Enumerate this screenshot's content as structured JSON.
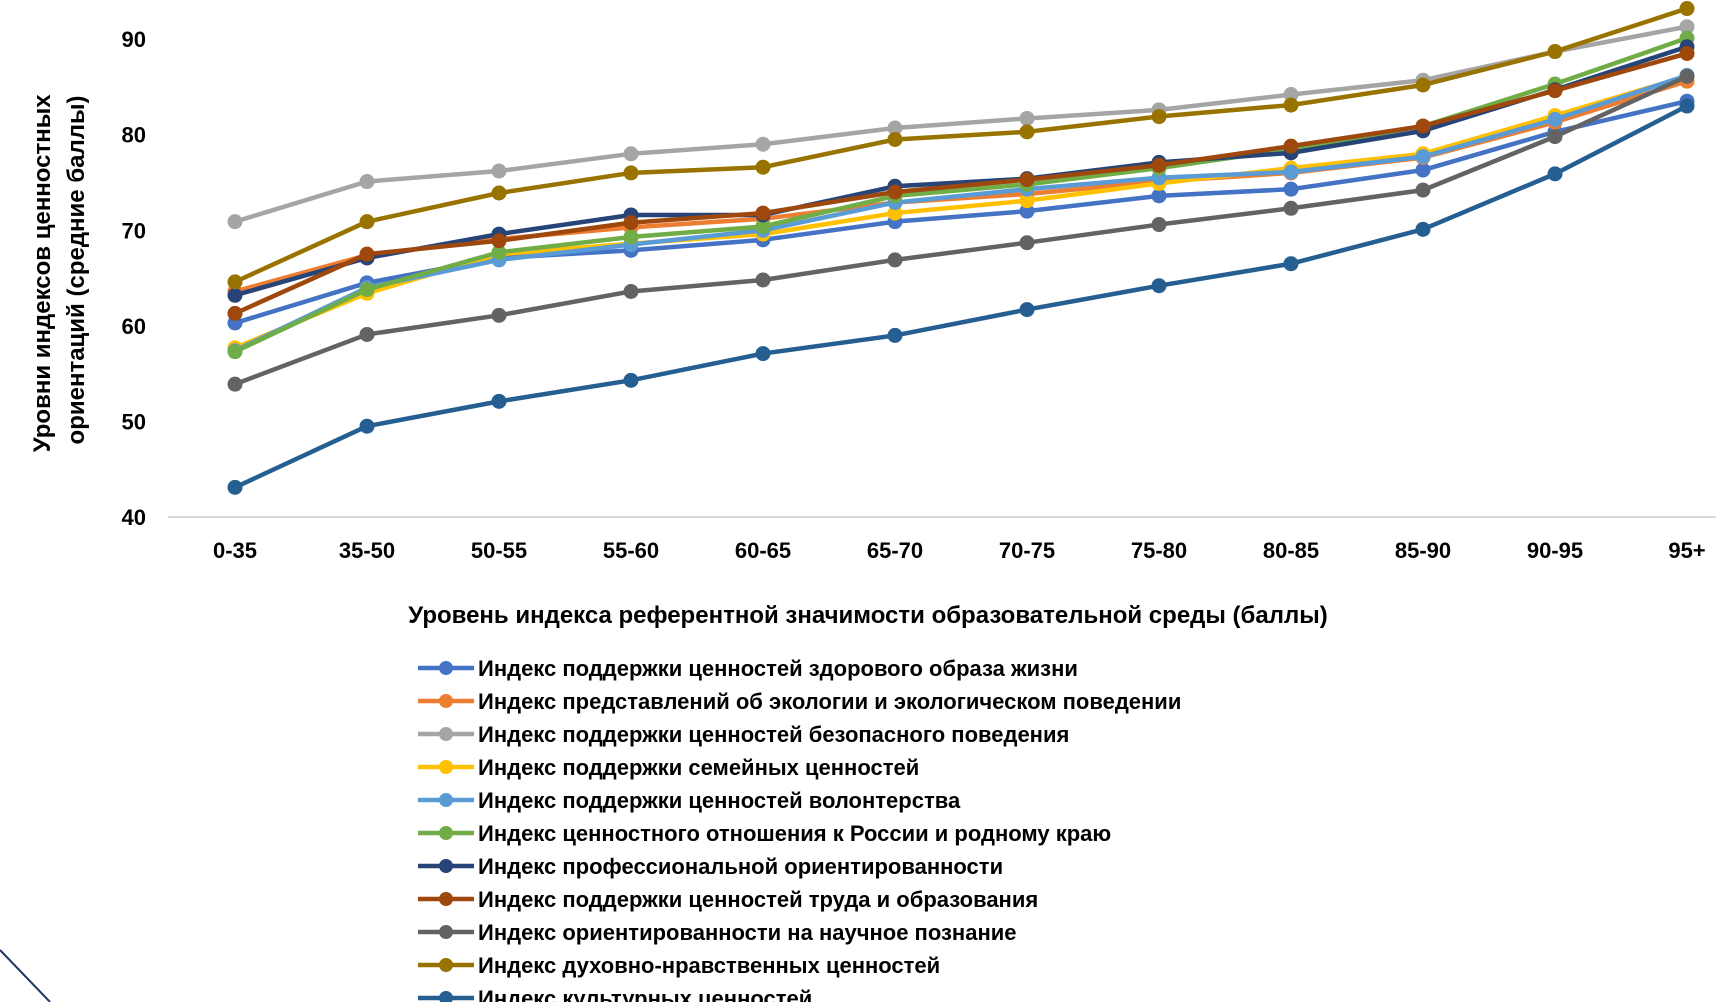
{
  "chart_data": {
    "type": "line",
    "xlabel": "Уровень индекса референтной значимости образовательной среды (баллы)",
    "ylabel_lines": [
      "Уровни индексов ценностных",
      "ориентаций (средние баллы)"
    ],
    "categories": [
      "0-35",
      "35-50",
      "50-55",
      "55-60",
      "60-65",
      "65-70",
      "70-75",
      "75-80",
      "80-85",
      "85-90",
      "90-95",
      "95+"
    ],
    "ylim": [
      40,
      92
    ],
    "yticks": [
      40,
      50,
      60,
      70,
      80,
      90
    ],
    "grid": false,
    "legend_position": "bottom",
    "series": [
      {
        "name": "Индекс поддержки ценностей здорового образа жизни",
        "color": "#4472C4",
        "values": [
          60.3,
          64.5,
          67.1,
          67.9,
          69.0,
          70.9,
          72.0,
          73.6,
          74.3,
          76.3,
          80.3,
          83.5
        ]
      },
      {
        "name": "Индекс представлений об экологии и экологическом поведении",
        "color": "#ED7D31",
        "values": [
          63.6,
          67.4,
          69.1,
          70.3,
          71.2,
          72.9,
          73.8,
          75.1,
          76.0,
          77.6,
          81.3,
          85.6
        ]
      },
      {
        "name": "Индекс поддержки ценностей безопасного поведения",
        "color": "#A5A5A5",
        "values": [
          70.9,
          75.1,
          76.2,
          78.0,
          79.0,
          80.7,
          81.7,
          82.6,
          84.2,
          85.7,
          88.7,
          91.3
        ]
      },
      {
        "name": "Индекс поддержки семейных ценностей",
        "color": "#FFC000",
        "values": [
          57.7,
          63.4,
          67.5,
          68.6,
          69.6,
          71.8,
          73.1,
          74.9,
          76.5,
          78.0,
          82.0,
          86.1
        ]
      },
      {
        "name": "Индекс поддержки ценностей волонтерства",
        "color": "#5B9BD5",
        "values": [
          57.4,
          64.0,
          66.9,
          68.5,
          70.0,
          72.9,
          74.3,
          75.5,
          76.1,
          77.7,
          81.6,
          86.2
        ]
      },
      {
        "name": "Индекс ценностного отношения к России и родному краю",
        "color": "#70AD47",
        "values": [
          57.3,
          63.8,
          67.7,
          69.3,
          70.4,
          73.6,
          74.8,
          76.5,
          78.5,
          80.9,
          85.3,
          90.1
        ]
      },
      {
        "name": "Индекс профессиональной ориентированности",
        "color": "#264478",
        "values": [
          63.2,
          67.1,
          69.6,
          71.6,
          71.6,
          74.6,
          75.4,
          77.1,
          78.1,
          80.4,
          84.7,
          89.2
        ]
      },
      {
        "name": "Индекс поддержки ценностей труда и образования",
        "color": "#9E480E",
        "values": [
          61.3,
          67.5,
          68.9,
          70.8,
          71.8,
          74.0,
          75.3,
          76.8,
          78.8,
          80.9,
          84.6,
          88.5
        ]
      },
      {
        "name": "Индекс ориентированности на научное познание",
        "color": "#636363",
        "values": [
          53.9,
          59.1,
          61.1,
          63.6,
          64.8,
          66.9,
          68.7,
          70.6,
          72.3,
          74.2,
          79.8,
          86.1
        ]
      },
      {
        "name": "Индекс духовно-нравственных ценностей",
        "color": "#997300",
        "values": [
          64.6,
          70.9,
          73.9,
          76.0,
          76.6,
          79.5,
          80.3,
          81.9,
          83.1,
          85.2,
          88.7,
          93.2
        ]
      },
      {
        "name": "Индекс культурных ценностей",
        "color": "#255E91",
        "values": [
          43.1,
          49.5,
          52.1,
          54.3,
          57.1,
          59.0,
          61.7,
          64.2,
          66.5,
          70.1,
          75.9,
          83.0
        ]
      }
    ]
  }
}
